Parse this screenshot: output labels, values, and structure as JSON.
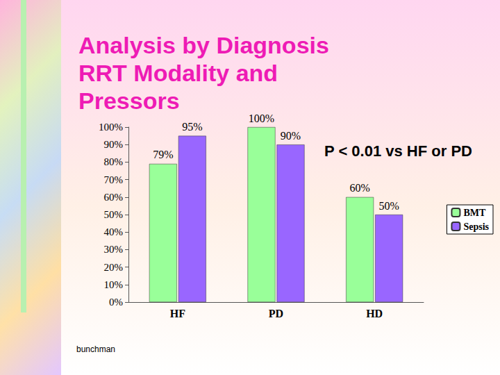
{
  "chart_data": {
    "type": "bar",
    "title": "Analysis by Diagnosis RRT Modality and Pressors",
    "categories": [
      "HF",
      "PD",
      "HD"
    ],
    "series": [
      {
        "name": "BMT",
        "color": "#99ff99",
        "values": [
          79,
          100,
          60
        ],
        "value_labels": [
          "79%",
          "100%",
          "60%"
        ]
      },
      {
        "name": "Sepsis",
        "color": "#9966ff",
        "values": [
          95,
          90,
          50
        ],
        "value_labels": [
          "95%",
          "90%",
          "50%"
        ]
      }
    ],
    "ylim": [
      0,
      100
    ],
    "yticks": [
      {
        "value": 0,
        "label": "0%"
      },
      {
        "value": 10,
        "label": "10%"
      },
      {
        "value": 20,
        "label": "20%"
      },
      {
        "value": 30,
        "label": "30%"
      },
      {
        "value": 40,
        "label": "40%"
      },
      {
        "value": 50,
        "label": "50%"
      },
      {
        "value": 60,
        "label": "60%"
      },
      {
        "value": 70,
        "label": "70%"
      },
      {
        "value": 80,
        "label": "80%"
      },
      {
        "value": 90,
        "label": "90%"
      },
      {
        "value": 100,
        "label": "100%"
      }
    ],
    "grid": false,
    "legend": "right",
    "data_labels": true,
    "annotations": [
      "P < 0.01 vs HF or PD"
    ],
    "footer": "bunchman"
  }
}
